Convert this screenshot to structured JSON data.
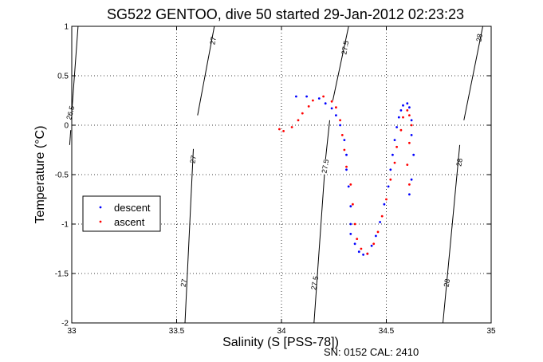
{
  "chart_data": {
    "type": "scatter",
    "title": "SG522 GENTOO, dive 50 started 29-Jan-2012 02:23:23",
    "xlabel": "Salinity (S [PSS-78])",
    "ylabel": "Temperature (°C)",
    "xlim": [
      33,
      35
    ],
    "ylim": [
      -2,
      1
    ],
    "x_ticks": [
      33,
      33.5,
      34,
      34.5,
      35
    ],
    "x_tick_labels": [
      "33",
      "33.5",
      "34",
      "34.5",
      "35"
    ],
    "y_ticks": [
      -2,
      -1.5,
      -1,
      -0.5,
      0,
      0.5,
      1
    ],
    "y_tick_labels": [
      "-2",
      "-1.5",
      "-1",
      "-0.5",
      "0",
      "0.5",
      "1"
    ],
    "grid": "dotted",
    "legend_position": "left",
    "footer": "SN: 0152  CAL: 2410",
    "series": [
      {
        "name": "descent",
        "color": "#0000ff",
        "points": [
          [
            34.07,
            0.29
          ],
          [
            34.12,
            0.29
          ],
          [
            34.18,
            0.27
          ],
          [
            34.21,
            0.22
          ],
          [
            34.24,
            0.17
          ],
          [
            34.26,
            0.1
          ],
          [
            34.28,
            0.0
          ],
          [
            34.3,
            -0.15
          ],
          [
            34.31,
            -0.3
          ],
          [
            34.31,
            -0.45
          ],
          [
            34.32,
            -0.62
          ],
          [
            34.33,
            -0.82
          ],
          [
            34.33,
            -1.0
          ],
          [
            34.33,
            -1.1
          ],
          [
            34.35,
            -1.2
          ],
          [
            34.37,
            -1.28
          ],
          [
            34.39,
            -1.31
          ],
          [
            34.41,
            -1.3
          ],
          [
            34.43,
            -1.22
          ],
          [
            34.45,
            -1.12
          ],
          [
            34.47,
            -0.98
          ],
          [
            34.49,
            -0.8
          ],
          [
            34.51,
            -0.62
          ],
          [
            34.52,
            -0.45
          ],
          [
            34.53,
            -0.3
          ],
          [
            34.54,
            -0.15
          ],
          [
            34.55,
            -0.02
          ],
          [
            34.56,
            0.08
          ],
          [
            34.57,
            0.15
          ],
          [
            34.58,
            0.2
          ],
          [
            34.6,
            0.22
          ],
          [
            34.61,
            0.18
          ],
          [
            34.62,
            0.05
          ],
          [
            34.62,
            -0.1
          ],
          [
            34.63,
            -0.3
          ],
          [
            34.62,
            -0.55
          ],
          [
            34.61,
            -0.7
          ]
        ]
      },
      {
        "name": "ascent",
        "color": "#ff0000",
        "points": [
          [
            33.99,
            -0.04
          ],
          [
            34.01,
            -0.06
          ],
          [
            34.05,
            -0.02
          ],
          [
            34.08,
            0.05
          ],
          [
            34.1,
            0.12
          ],
          [
            34.13,
            0.19
          ],
          [
            34.15,
            0.25
          ],
          [
            34.2,
            0.29
          ],
          [
            34.24,
            0.24
          ],
          [
            34.26,
            0.18
          ],
          [
            34.28,
            0.05
          ],
          [
            34.29,
            -0.1
          ],
          [
            34.3,
            -0.25
          ],
          [
            34.31,
            -0.42
          ],
          [
            34.33,
            -0.6
          ],
          [
            34.34,
            -0.8
          ],
          [
            34.35,
            -1.0
          ],
          [
            34.36,
            -1.15
          ],
          [
            34.38,
            -1.25
          ],
          [
            34.41,
            -1.3
          ],
          [
            34.44,
            -1.2
          ],
          [
            34.46,
            -1.08
          ],
          [
            34.48,
            -0.92
          ],
          [
            34.5,
            -0.75
          ],
          [
            34.52,
            -0.55
          ],
          [
            34.54,
            -0.38
          ],
          [
            34.55,
            -0.22
          ],
          [
            34.57,
            -0.05
          ],
          [
            34.58,
            0.08
          ],
          [
            34.6,
            0.15
          ],
          [
            34.61,
            0.1
          ],
          [
            34.62,
            0.0
          ],
          [
            34.61,
            -0.18
          ],
          [
            34.6,
            -0.4
          ],
          [
            34.61,
            -0.6
          ]
        ]
      }
    ],
    "isopycnals": [
      {
        "segments": [
          [
            [
              33.03,
              1
            ],
            [
              33.0,
              0.13
            ]
          ],
          [
            [
              32.995,
              -0.05
            ],
            [
              32.99,
              -0.2
            ]
          ]
        ],
        "labels": [
          {
            "text": "26.5",
            "x": 33.005,
            "y": 0.12,
            "angle": -75
          }
        ]
      },
      {
        "segments": [
          [
            [
              33.68,
              1
            ],
            [
              33.6,
              0.1
            ]
          ],
          [
            [
              33.58,
              -0.24
            ],
            [
              33.54,
              -2
            ]
          ]
        ],
        "labels": [
          {
            "text": "27",
            "x": 33.685,
            "y": 0.85,
            "angle": -80
          },
          {
            "text": "27",
            "x": 33.59,
            "y": -0.35,
            "angle": -80
          },
          {
            "text": "27",
            "x": 33.545,
            "y": -1.6,
            "angle": -80
          }
        ]
      },
      {
        "segments": [
          [
            [
              34.32,
              1
            ],
            [
              34.245,
              0.25
            ]
          ],
          [
            [
              34.23,
              0.05
            ],
            [
              34.21,
              -0.35
            ]
          ],
          [
            [
              34.205,
              -0.5
            ],
            [
              34.155,
              -2
            ]
          ]
        ],
        "labels": [
          {
            "text": "27.5",
            "x": 34.315,
            "y": 0.78,
            "angle": -80
          },
          {
            "text": "27.5",
            "x": 34.22,
            "y": -0.42,
            "angle": -80
          },
          {
            "text": "27.5",
            "x": 34.17,
            "y": -1.6,
            "angle": -80
          }
        ]
      },
      {
        "segments": [
          [
            [
              34.96,
              1
            ],
            [
              34.87,
              0.05
            ]
          ],
          [
            [
              34.85,
              -0.2
            ],
            [
              34.77,
              -2
            ]
          ]
        ],
        "labels": [
          {
            "text": "28",
            "x": 34.955,
            "y": 0.88,
            "angle": -80
          },
          {
            "text": "28",
            "x": 34.86,
            "y": -0.38,
            "angle": -80
          },
          {
            "text": "28",
            "x": 34.8,
            "y": -1.6,
            "angle": -80
          }
        ]
      }
    ]
  }
}
